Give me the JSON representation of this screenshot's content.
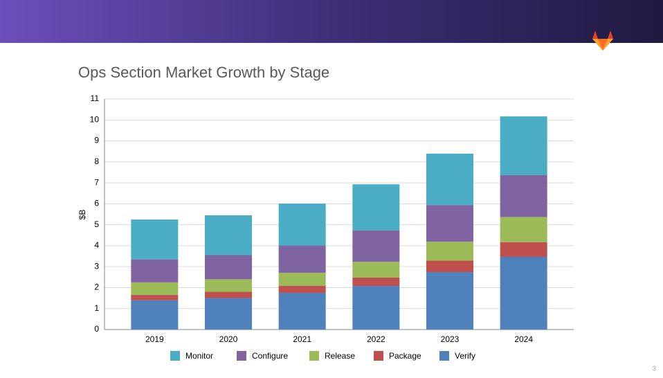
{
  "page_number": "3",
  "chart_data": {
    "type": "stacked_bar",
    "title": "Ops Section Market Growth by Stage",
    "y_label": "$B",
    "categories": [
      "2019",
      "2020",
      "2021",
      "2022",
      "2023",
      "2024"
    ],
    "series": [
      {
        "name": "Monitor",
        "color": "#4bacc6",
        "values": [
          1.9,
          1.9,
          2.0,
          2.2,
          2.45,
          2.8
        ]
      },
      {
        "name": "Configure",
        "color": "#8064a2",
        "values": [
          1.1,
          1.15,
          1.3,
          1.5,
          1.75,
          2.0
        ]
      },
      {
        "name": "Release",
        "color": "#9bbb59",
        "values": [
          0.6,
          0.6,
          0.63,
          0.75,
          0.9,
          1.2
        ]
      },
      {
        "name": "Package",
        "color": "#c0504d",
        "values": [
          0.25,
          0.3,
          0.33,
          0.4,
          0.55,
          0.7
        ]
      },
      {
        "name": "Verify",
        "color": "#4f81bd",
        "values": [
          1.4,
          1.5,
          1.75,
          2.08,
          2.74,
          3.47
        ]
      }
    ],
    "ylim": [
      0,
      11
    ],
    "yticks": [
      0,
      1,
      2,
      3,
      4,
      5,
      6,
      7,
      8,
      9,
      10,
      11
    ],
    "grid": true
  }
}
